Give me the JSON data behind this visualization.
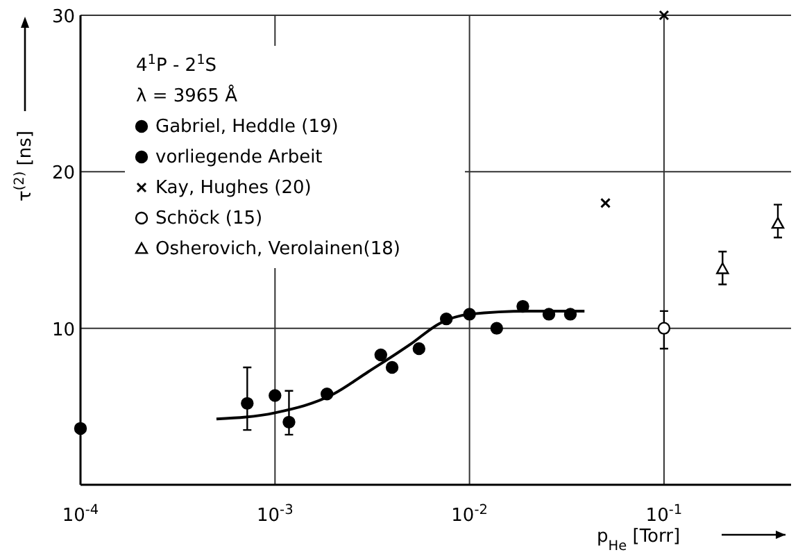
{
  "chart_data": {
    "type": "scatter",
    "xlabel": "p$_{He}$ [Torr]",
    "ylabel": "τ$^{(2)}$ [ns]",
    "annotations": [
      "4$^{1}$P - 2$^{1}$S",
      "λ = 3965 Å"
    ],
    "log": "x",
    "xlim": [
      0.0001,
      0.45
    ],
    "ylim": [
      0,
      30
    ],
    "xticks": [
      {
        "value": 0.0001,
        "label": "10$^{-4}$"
      },
      {
        "value": 0.001,
        "label": "10$^{-3}$"
      },
      {
        "value": 0.01,
        "label": "10$^{-2}$"
      },
      {
        "value": 0.1,
        "label": "10$^{-1}$"
      }
    ],
    "yticks": [
      10,
      20,
      30
    ],
    "grid": true,
    "legend": "top left",
    "series": [
      {
        "name": "Gabriel, Heddle (19)",
        "color": "#000000",
        "marker": "circle",
        "x": [
          0.0001
        ],
        "values": [
          3.6
        ]
      },
      {
        "name": "vorliegende Arbeit",
        "color": "#000000",
        "marker": "circle",
        "x": [
          0.00072,
          0.001,
          0.00118,
          0.00185,
          0.0035,
          0.004,
          0.0055,
          0.0076,
          0.01,
          0.0138,
          0.0188,
          0.0256,
          0.033
        ],
        "values": [
          5.2,
          5.7,
          4.0,
          5.8,
          8.3,
          7.5,
          8.7,
          10.6,
          10.9,
          10.0,
          11.4,
          10.9,
          10.9
        ],
        "errors": [
          [
            3.5,
            7.5
          ],
          null,
          [
            3.2,
            6.0
          ],
          null,
          null,
          null,
          null,
          null,
          null,
          null,
          null,
          null,
          null
        ]
      },
      {
        "name": "Kay, Hughes (20)",
        "color": "#000000",
        "marker": "cross",
        "x": [
          0.05,
          0.1
        ],
        "values": [
          18.0,
          30
        ]
      },
      {
        "name": "Schöck (15)",
        "color": "#ffffff",
        "marker": "circle",
        "x": [
          0.1
        ],
        "values": [
          10.0
        ],
        "errors": [
          [
            8.7,
            11.1
          ]
        ]
      },
      {
        "name": "Osherovich, Verolainen(18)",
        "color": "#ffffff",
        "marker": "triangle",
        "x": [
          0.2,
          0.385
        ],
        "values": [
          13.8,
          16.7
        ],
        "errors": [
          [
            12.8,
            14.9
          ],
          [
            15.8,
            17.9
          ]
        ]
      },
      {
        "type": "line",
        "color": "#000000",
        "marker": "none",
        "line_style": "solid",
        "x": [
          0.0005,
          0.001,
          0.002,
          0.003,
          0.005,
          0.007,
          0.01,
          0.02,
          0.039
        ],
        "values": [
          4.2,
          4.6,
          5.8,
          7.2,
          9.0,
          10.3,
          10.9,
          11.1,
          11.1
        ]
      }
    ]
  }
}
